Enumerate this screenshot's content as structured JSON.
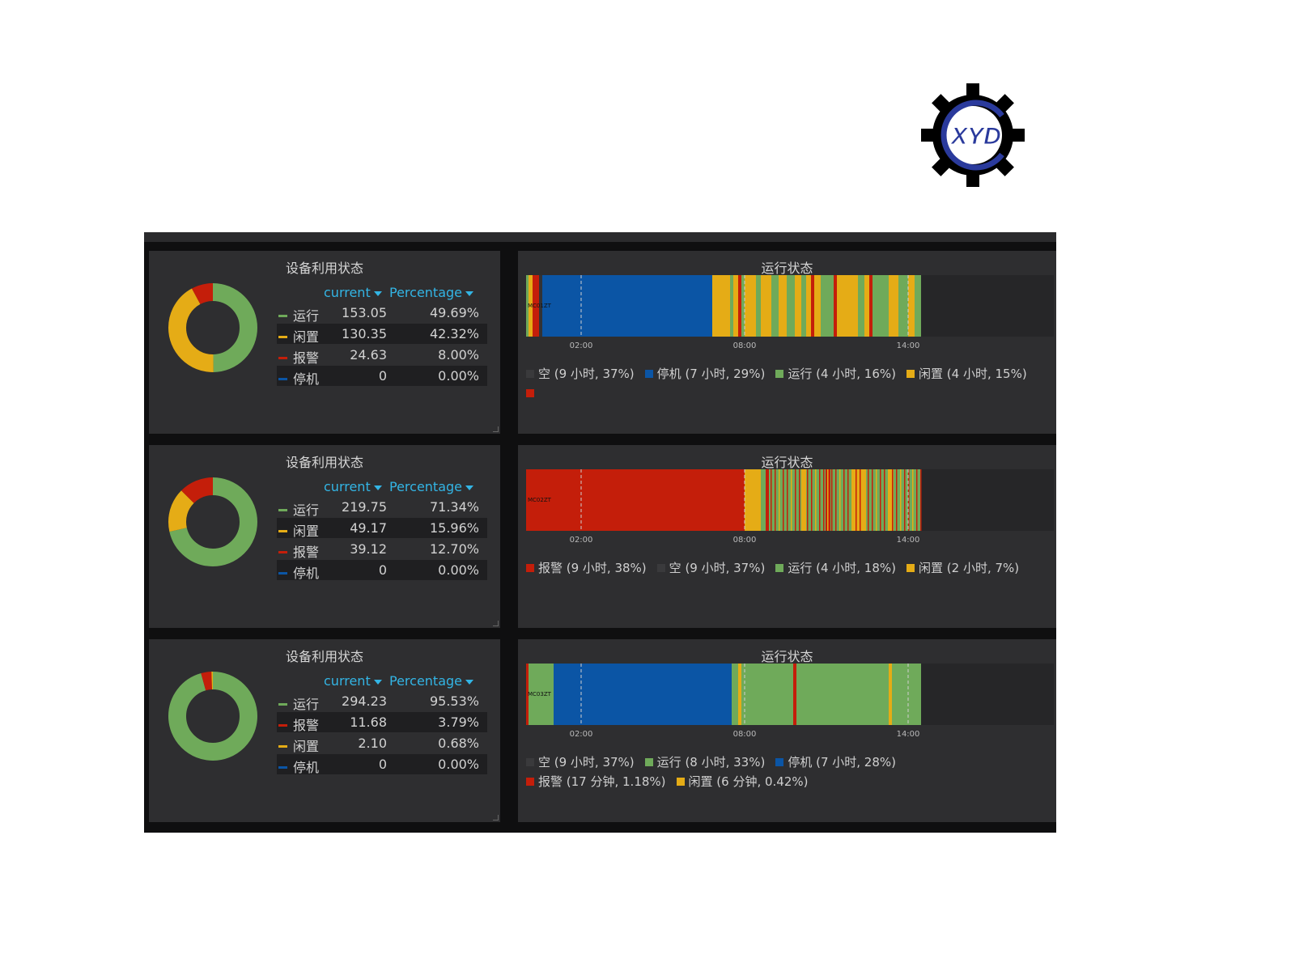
{
  "colors": {
    "running": "#6faa5a",
    "idle": "#e5ac16",
    "alarm": "#c41e0a",
    "stopped": "#0b55a5",
    "empty": "#333335"
  },
  "logo": {
    "text": "XYD",
    "gear_color": "#000000",
    "ring_color": "#2a3a9c",
    "text_color": "#d11f2b",
    "icon": "gear-logo-icon"
  },
  "ticks": [
    "02:00",
    "08:00",
    "14:00"
  ],
  "legend_headers": {
    "current": "current",
    "percentage": "Percentage"
  },
  "rows": [
    {
      "utilization": {
        "title": "设备利用状态",
        "items": [
          {
            "name": "运行",
            "current": "153.05",
            "percent": "49.69%",
            "color": "#6faa5a"
          },
          {
            "name": "闲置",
            "current": "130.35",
            "percent": "42.32%",
            "color": "#e5ac16"
          },
          {
            "name": "报警",
            "current": "24.63",
            "percent": "8.00%",
            "color": "#c41e0a"
          },
          {
            "name": "停机",
            "current": "0",
            "percent": "0.00%",
            "color": "#0b55a5"
          }
        ]
      },
      "status": {
        "title": "运行状态",
        "bar_label": "MC01ZT",
        "legend": [
          {
            "label": "空 (9 小时, 37%)",
            "color": "#3a3a3c"
          },
          {
            "label": "停机 (7 小时, 29%)",
            "color": "#0b55a5"
          },
          {
            "label": "运行 (4 小时, 16%)",
            "color": "#6faa5a"
          },
          {
            "label": "闲置 (4 小时, 15%)",
            "color": "#e5ac16"
          }
        ],
        "trailing_swatch": "#c41e0a"
      }
    },
    {
      "utilization": {
        "title": "设备利用状态",
        "items": [
          {
            "name": "运行",
            "current": "219.75",
            "percent": "71.34%",
            "color": "#6faa5a"
          },
          {
            "name": "闲置",
            "current": "49.17",
            "percent": "15.96%",
            "color": "#e5ac16"
          },
          {
            "name": "报警",
            "current": "39.12",
            "percent": "12.70%",
            "color": "#c41e0a"
          },
          {
            "name": "停机",
            "current": "0",
            "percent": "0.00%",
            "color": "#0b55a5"
          }
        ]
      },
      "status": {
        "title": "运行状态",
        "bar_label": "MC02ZT",
        "legend": [
          {
            "label": "报警 (9 小时, 38%)",
            "color": "#c41e0a"
          },
          {
            "label": "空 (9 小时, 37%)",
            "color": "#3a3a3c"
          },
          {
            "label": "运行 (4 小时, 18%)",
            "color": "#6faa5a"
          },
          {
            "label": "闲置 (2 小时, 7%)",
            "color": "#e5ac16"
          }
        ],
        "trailing_swatch": ""
      }
    },
    {
      "utilization": {
        "title": "设备利用状态",
        "items": [
          {
            "name": "运行",
            "current": "294.23",
            "percent": "95.53%",
            "color": "#6faa5a"
          },
          {
            "name": "报警",
            "current": "11.68",
            "percent": "3.79%",
            "color": "#c41e0a"
          },
          {
            "name": "闲置",
            "current": "2.10",
            "percent": "0.68%",
            "color": "#e5ac16"
          },
          {
            "name": "停机",
            "current": "0",
            "percent": "0.00%",
            "color": "#0b55a5"
          }
        ]
      },
      "status": {
        "title": "运行状态",
        "bar_label": "MC03ZT",
        "legend": [
          {
            "label": "空 (9 小时, 37%)",
            "color": "#3a3a3c"
          },
          {
            "label": "运行 (8 小时, 33%)",
            "color": "#6faa5a"
          },
          {
            "label": "停机 (7 小时, 28%)",
            "color": "#0b55a5"
          },
          {
            "label": "报警 (17 分钟, 1.18%)",
            "color": "#c41e0a"
          },
          {
            "label": "闲置 (6 分钟, 0.42%)",
            "color": "#e5ac16"
          }
        ],
        "trailing_swatch": ""
      }
    }
  ]
}
